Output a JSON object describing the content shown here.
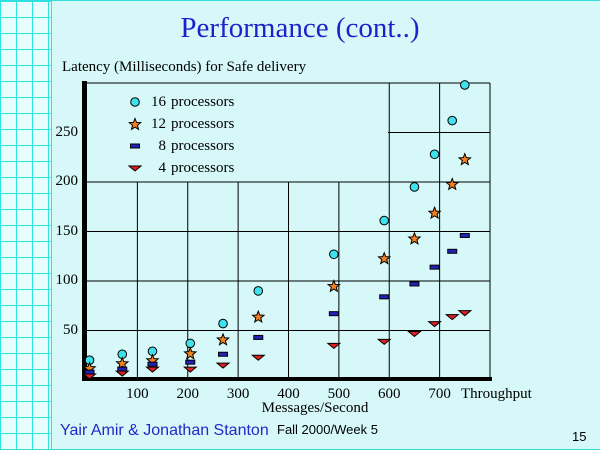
{
  "slide": {
    "title": "Performance (cont..)",
    "subtitle": "Latency (Milliseconds) for Safe delivery",
    "footer": {
      "authors": "Yair Amir & Jonathan Stanton",
      "course": "Fall 2000/Week 5",
      "page_number": "15"
    }
  },
  "chart_data": {
    "type": "scatter",
    "title": "Latency (Milliseconds) for Safe delivery",
    "xlabel": "Throughput",
    "xlabel2": "Messages/Second",
    "ylabel": "Latency (Milliseconds)",
    "xlim": [
      0,
      800
    ],
    "ylim": [
      0,
      300
    ],
    "x_ticks": [
      100,
      200,
      300,
      400,
      500,
      600,
      700
    ],
    "y_ticks": [
      50,
      100,
      150,
      200,
      250
    ],
    "grid": true,
    "legend_position": "top-left-inside",
    "x": [
      5,
      70,
      130,
      205,
      270,
      340,
      490,
      590,
      650,
      690,
      725,
      750
    ],
    "series": [
      {
        "name": "16 processors",
        "count": "16",
        "label": "processors",
        "marker": "circle",
        "color": "#3fe1ed",
        "values": [
          20,
          26,
          29,
          37,
          57,
          90,
          127,
          161,
          195,
          228,
          262,
          298
        ]
      },
      {
        "name": "12 processors",
        "count": "12",
        "label": "processors",
        "marker": "star",
        "color": "#f58220",
        "values": [
          12,
          17,
          20,
          27,
          41,
          64,
          95,
          123,
          143,
          169,
          198,
          223
        ]
      },
      {
        "name": "8 processors",
        "count": "8",
        "label": "processors",
        "marker": "dash",
        "color": "#2222bb",
        "values": [
          8,
          11,
          16,
          18,
          26,
          43,
          67,
          84,
          97,
          114,
          130,
          146
        ]
      },
      {
        "name": "4 processors",
        "count": "4",
        "label": "processors",
        "marker": "triangle-down",
        "color": "#e02020",
        "values": [
          4,
          7,
          11,
          11,
          15,
          23,
          35,
          39,
          47,
          57,
          64,
          68
        ]
      }
    ]
  },
  "colors": {
    "background": "#d6f8f8",
    "grid_strip_line": "#2fe2e2",
    "title_blue": "#1f1fcb",
    "footer_blue": "#2626c9",
    "axis_black": "#000000"
  }
}
